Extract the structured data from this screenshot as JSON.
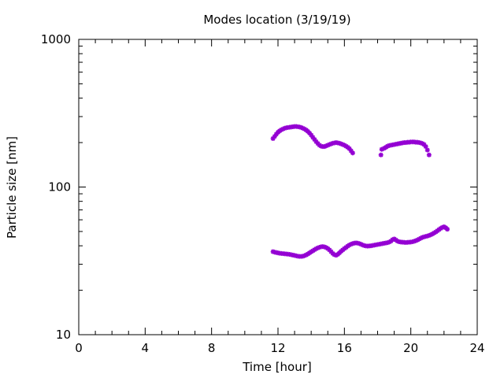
{
  "chart_data": {
    "type": "scatter",
    "title": "Modes location (3/19/19)",
    "xlabel": "Time [hour]",
    "ylabel": "Particle size [nm]",
    "xlim": [
      0,
      24
    ],
    "ylim": [
      10,
      1000
    ],
    "yscale": "log",
    "x_ticks": [
      "0",
      "4",
      "8",
      "12",
      "16",
      "20",
      "24"
    ],
    "y_ticks": [
      "10",
      "100",
      "1000"
    ],
    "grid": false,
    "legend": "none",
    "marker_color": "#9400D3",
    "series": [
      {
        "points": [
          [
            11.7,
            213
          ],
          [
            11.8,
            220
          ],
          [
            11.9,
            228
          ],
          [
            12.0,
            235
          ],
          [
            12.1,
            240
          ],
          [
            12.2,
            244
          ],
          [
            12.3,
            247
          ],
          [
            12.4,
            250
          ],
          [
            12.5,
            252
          ],
          [
            12.6,
            253
          ],
          [
            12.7,
            254
          ],
          [
            12.8,
            255
          ],
          [
            12.9,
            256
          ],
          [
            13.0,
            257
          ],
          [
            13.1,
            257
          ],
          [
            13.2,
            256
          ],
          [
            13.3,
            255
          ],
          [
            13.4,
            253
          ],
          [
            13.5,
            250
          ],
          [
            13.6,
            247
          ],
          [
            13.7,
            243
          ],
          [
            13.8,
            238
          ],
          [
            13.9,
            232
          ],
          [
            14.0,
            225
          ],
          [
            14.1,
            217
          ],
          [
            14.2,
            210
          ],
          [
            14.3,
            203
          ],
          [
            14.4,
            197
          ],
          [
            14.5,
            192
          ],
          [
            14.6,
            189
          ],
          [
            14.7,
            188
          ],
          [
            14.8,
            188
          ],
          [
            14.9,
            190
          ],
          [
            15.0,
            192
          ],
          [
            15.1,
            194
          ],
          [
            15.2,
            196
          ],
          [
            15.3,
            198
          ],
          [
            15.4,
            199
          ],
          [
            15.5,
            200
          ],
          [
            15.6,
            199
          ],
          [
            15.7,
            198
          ],
          [
            15.8,
            196
          ],
          [
            15.9,
            194
          ],
          [
            16.0,
            192
          ],
          [
            16.1,
            189
          ],
          [
            16.2,
            186
          ],
          [
            16.3,
            182
          ],
          [
            16.4,
            176
          ],
          [
            16.5,
            170
          ],
          [
            18.2,
            165
          ],
          [
            18.25,
            180
          ],
          [
            18.4,
            183
          ],
          [
            18.5,
            186
          ],
          [
            18.6,
            189
          ],
          [
            18.7,
            191
          ],
          [
            18.8,
            192
          ],
          [
            18.9,
            193
          ],
          [
            19.0,
            194
          ],
          [
            19.1,
            195
          ],
          [
            19.2,
            196
          ],
          [
            19.3,
            197
          ],
          [
            19.4,
            198
          ],
          [
            19.5,
            199
          ],
          [
            19.6,
            200
          ],
          [
            19.7,
            200
          ],
          [
            19.8,
            201
          ],
          [
            19.9,
            201
          ],
          [
            20.0,
            202
          ],
          [
            20.1,
            202
          ],
          [
            20.2,
            202
          ],
          [
            20.3,
            201
          ],
          [
            20.4,
            201
          ],
          [
            20.5,
            200
          ],
          [
            20.6,
            199
          ],
          [
            20.7,
            197
          ],
          [
            20.8,
            194
          ],
          [
            20.9,
            188
          ],
          [
            21.0,
            178
          ],
          [
            21.1,
            165
          ]
        ]
      },
      {
        "points": [
          [
            11.7,
            36.5
          ],
          [
            11.8,
            36.2
          ],
          [
            11.9,
            36.0
          ],
          [
            12.0,
            35.8
          ],
          [
            12.1,
            35.6
          ],
          [
            12.2,
            35.5
          ],
          [
            12.3,
            35.4
          ],
          [
            12.4,
            35.3
          ],
          [
            12.5,
            35.2
          ],
          [
            12.6,
            35.1
          ],
          [
            12.7,
            35.0
          ],
          [
            12.8,
            34.8
          ],
          [
            12.9,
            34.6
          ],
          [
            13.0,
            34.4
          ],
          [
            13.1,
            34.2
          ],
          [
            13.2,
            34.0
          ],
          [
            13.3,
            33.9
          ],
          [
            13.4,
            33.9
          ],
          [
            13.5,
            34.0
          ],
          [
            13.6,
            34.3
          ],
          [
            13.7,
            34.7
          ],
          [
            13.8,
            35.2
          ],
          [
            13.9,
            35.8
          ],
          [
            14.0,
            36.4
          ],
          [
            14.1,
            37.0
          ],
          [
            14.2,
            37.6
          ],
          [
            14.3,
            38.2
          ],
          [
            14.4,
            38.7
          ],
          [
            14.5,
            39.1
          ],
          [
            14.6,
            39.4
          ],
          [
            14.7,
            39.5
          ],
          [
            14.8,
            39.3
          ],
          [
            14.9,
            38.9
          ],
          [
            15.0,
            38.3
          ],
          [
            15.1,
            37.5
          ],
          [
            15.2,
            36.5
          ],
          [
            15.3,
            35.5
          ],
          [
            15.4,
            34.8
          ],
          [
            15.5,
            34.5
          ],
          [
            15.6,
            35.0
          ],
          [
            15.7,
            35.8
          ],
          [
            15.8,
            36.7
          ],
          [
            15.9,
            37.5
          ],
          [
            16.0,
            38.3
          ],
          [
            16.1,
            39.0
          ],
          [
            16.2,
            39.8
          ],
          [
            16.3,
            40.5
          ],
          [
            16.4,
            41.0
          ],
          [
            16.5,
            41.4
          ],
          [
            16.6,
            41.7
          ],
          [
            16.7,
            41.8
          ],
          [
            16.8,
            41.7
          ],
          [
            16.9,
            41.4
          ],
          [
            17.0,
            41.0
          ],
          [
            17.1,
            40.5
          ],
          [
            17.2,
            40.1
          ],
          [
            17.3,
            39.9
          ],
          [
            17.4,
            39.8
          ],
          [
            17.5,
            39.9
          ],
          [
            17.6,
            40.0
          ],
          [
            17.7,
            40.2
          ],
          [
            17.8,
            40.4
          ],
          [
            17.9,
            40.6
          ],
          [
            18.0,
            40.8
          ],
          [
            18.1,
            41.0
          ],
          [
            18.2,
            41.2
          ],
          [
            18.3,
            41.4
          ],
          [
            18.4,
            41.6
          ],
          [
            18.5,
            41.8
          ],
          [
            18.6,
            42.0
          ],
          [
            18.7,
            42.4
          ],
          [
            18.8,
            43.0
          ],
          [
            18.9,
            44.0
          ],
          [
            19.0,
            44.5
          ],
          [
            19.1,
            43.8
          ],
          [
            19.2,
            43.0
          ],
          [
            19.3,
            42.6
          ],
          [
            19.4,
            42.4
          ],
          [
            19.5,
            42.3
          ],
          [
            19.6,
            42.2
          ],
          [
            19.7,
            42.1
          ],
          [
            19.8,
            42.2
          ],
          [
            19.9,
            42.3
          ],
          [
            20.0,
            42.4
          ],
          [
            20.1,
            42.6
          ],
          [
            20.2,
            42.9
          ],
          [
            20.3,
            43.3
          ],
          [
            20.4,
            43.8
          ],
          [
            20.5,
            44.4
          ],
          [
            20.6,
            45.0
          ],
          [
            20.7,
            45.6
          ],
          [
            20.8,
            46.0
          ],
          [
            20.9,
            46.3
          ],
          [
            21.0,
            46.6
          ],
          [
            21.1,
            47.0
          ],
          [
            21.2,
            47.5
          ],
          [
            21.3,
            48.1
          ],
          [
            21.4,
            48.8
          ],
          [
            21.5,
            49.6
          ],
          [
            21.6,
            50.5
          ],
          [
            21.7,
            51.5
          ],
          [
            21.8,
            52.5
          ],
          [
            21.9,
            53.3
          ],
          [
            22.0,
            53.8
          ],
          [
            22.1,
            53.0
          ],
          [
            22.2,
            51.8
          ]
        ]
      }
    ]
  }
}
